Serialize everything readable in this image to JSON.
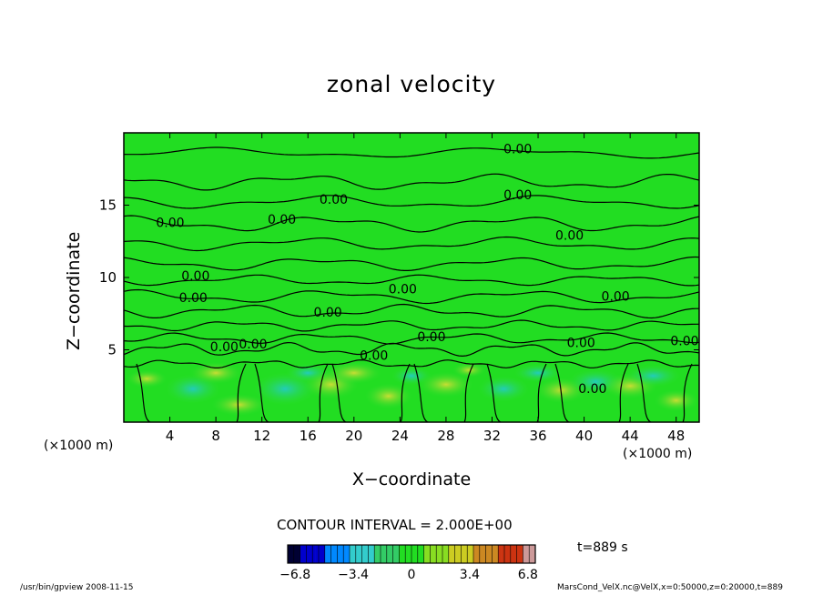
{
  "chart_data": {
    "type": "heatmap",
    "title": "zonal velocity",
    "xlabel": "X−coordinate",
    "ylabel": "Z−coordinate",
    "x_unit": "(×1000 m)",
    "xlim": [
      0,
      50
    ],
    "ylim": [
      0,
      20
    ],
    "x_ticks": [
      4,
      8,
      12,
      16,
      20,
      24,
      28,
      32,
      36,
      40,
      44,
      48
    ],
    "y_ticks": [
      5,
      10,
      15
    ],
    "contour_labels": [
      "0.00",
      "0.00",
      "0.00",
      "0.00",
      "0.00",
      "0.00",
      "0.00",
      "0.00",
      "0.00",
      "0.00",
      "0.00",
      "0.00",
      "0.00",
      "0.00",
      "0.00",
      "0.00",
      "0.00",
      "0.00"
    ],
    "contour_interval": "CONTOUR INTERVAL = 2.000E+00",
    "colorbar": {
      "ticks": [
        "−6.8",
        "−3.4",
        "0",
        "3.4",
        "6.8"
      ],
      "range": [
        -6.8,
        6.8
      ],
      "colors": [
        "#000033",
        "#0000cc",
        "#0088ff",
        "#33cccc",
        "#33cc66",
        "#22dd22",
        "#88dd22",
        "#cccc22",
        "#cc8822",
        "#cc3311",
        "#cc9999"
      ]
    },
    "field_color": "#22dd22",
    "grid": false
  },
  "annotations": {
    "time": "t=889 s",
    "footer_left": "/usr/bin/gpview   2008-11-15",
    "footer_right": "MarsCond_VelX.nc@VelX,x=0:50000,z=0:20000,t=889"
  }
}
